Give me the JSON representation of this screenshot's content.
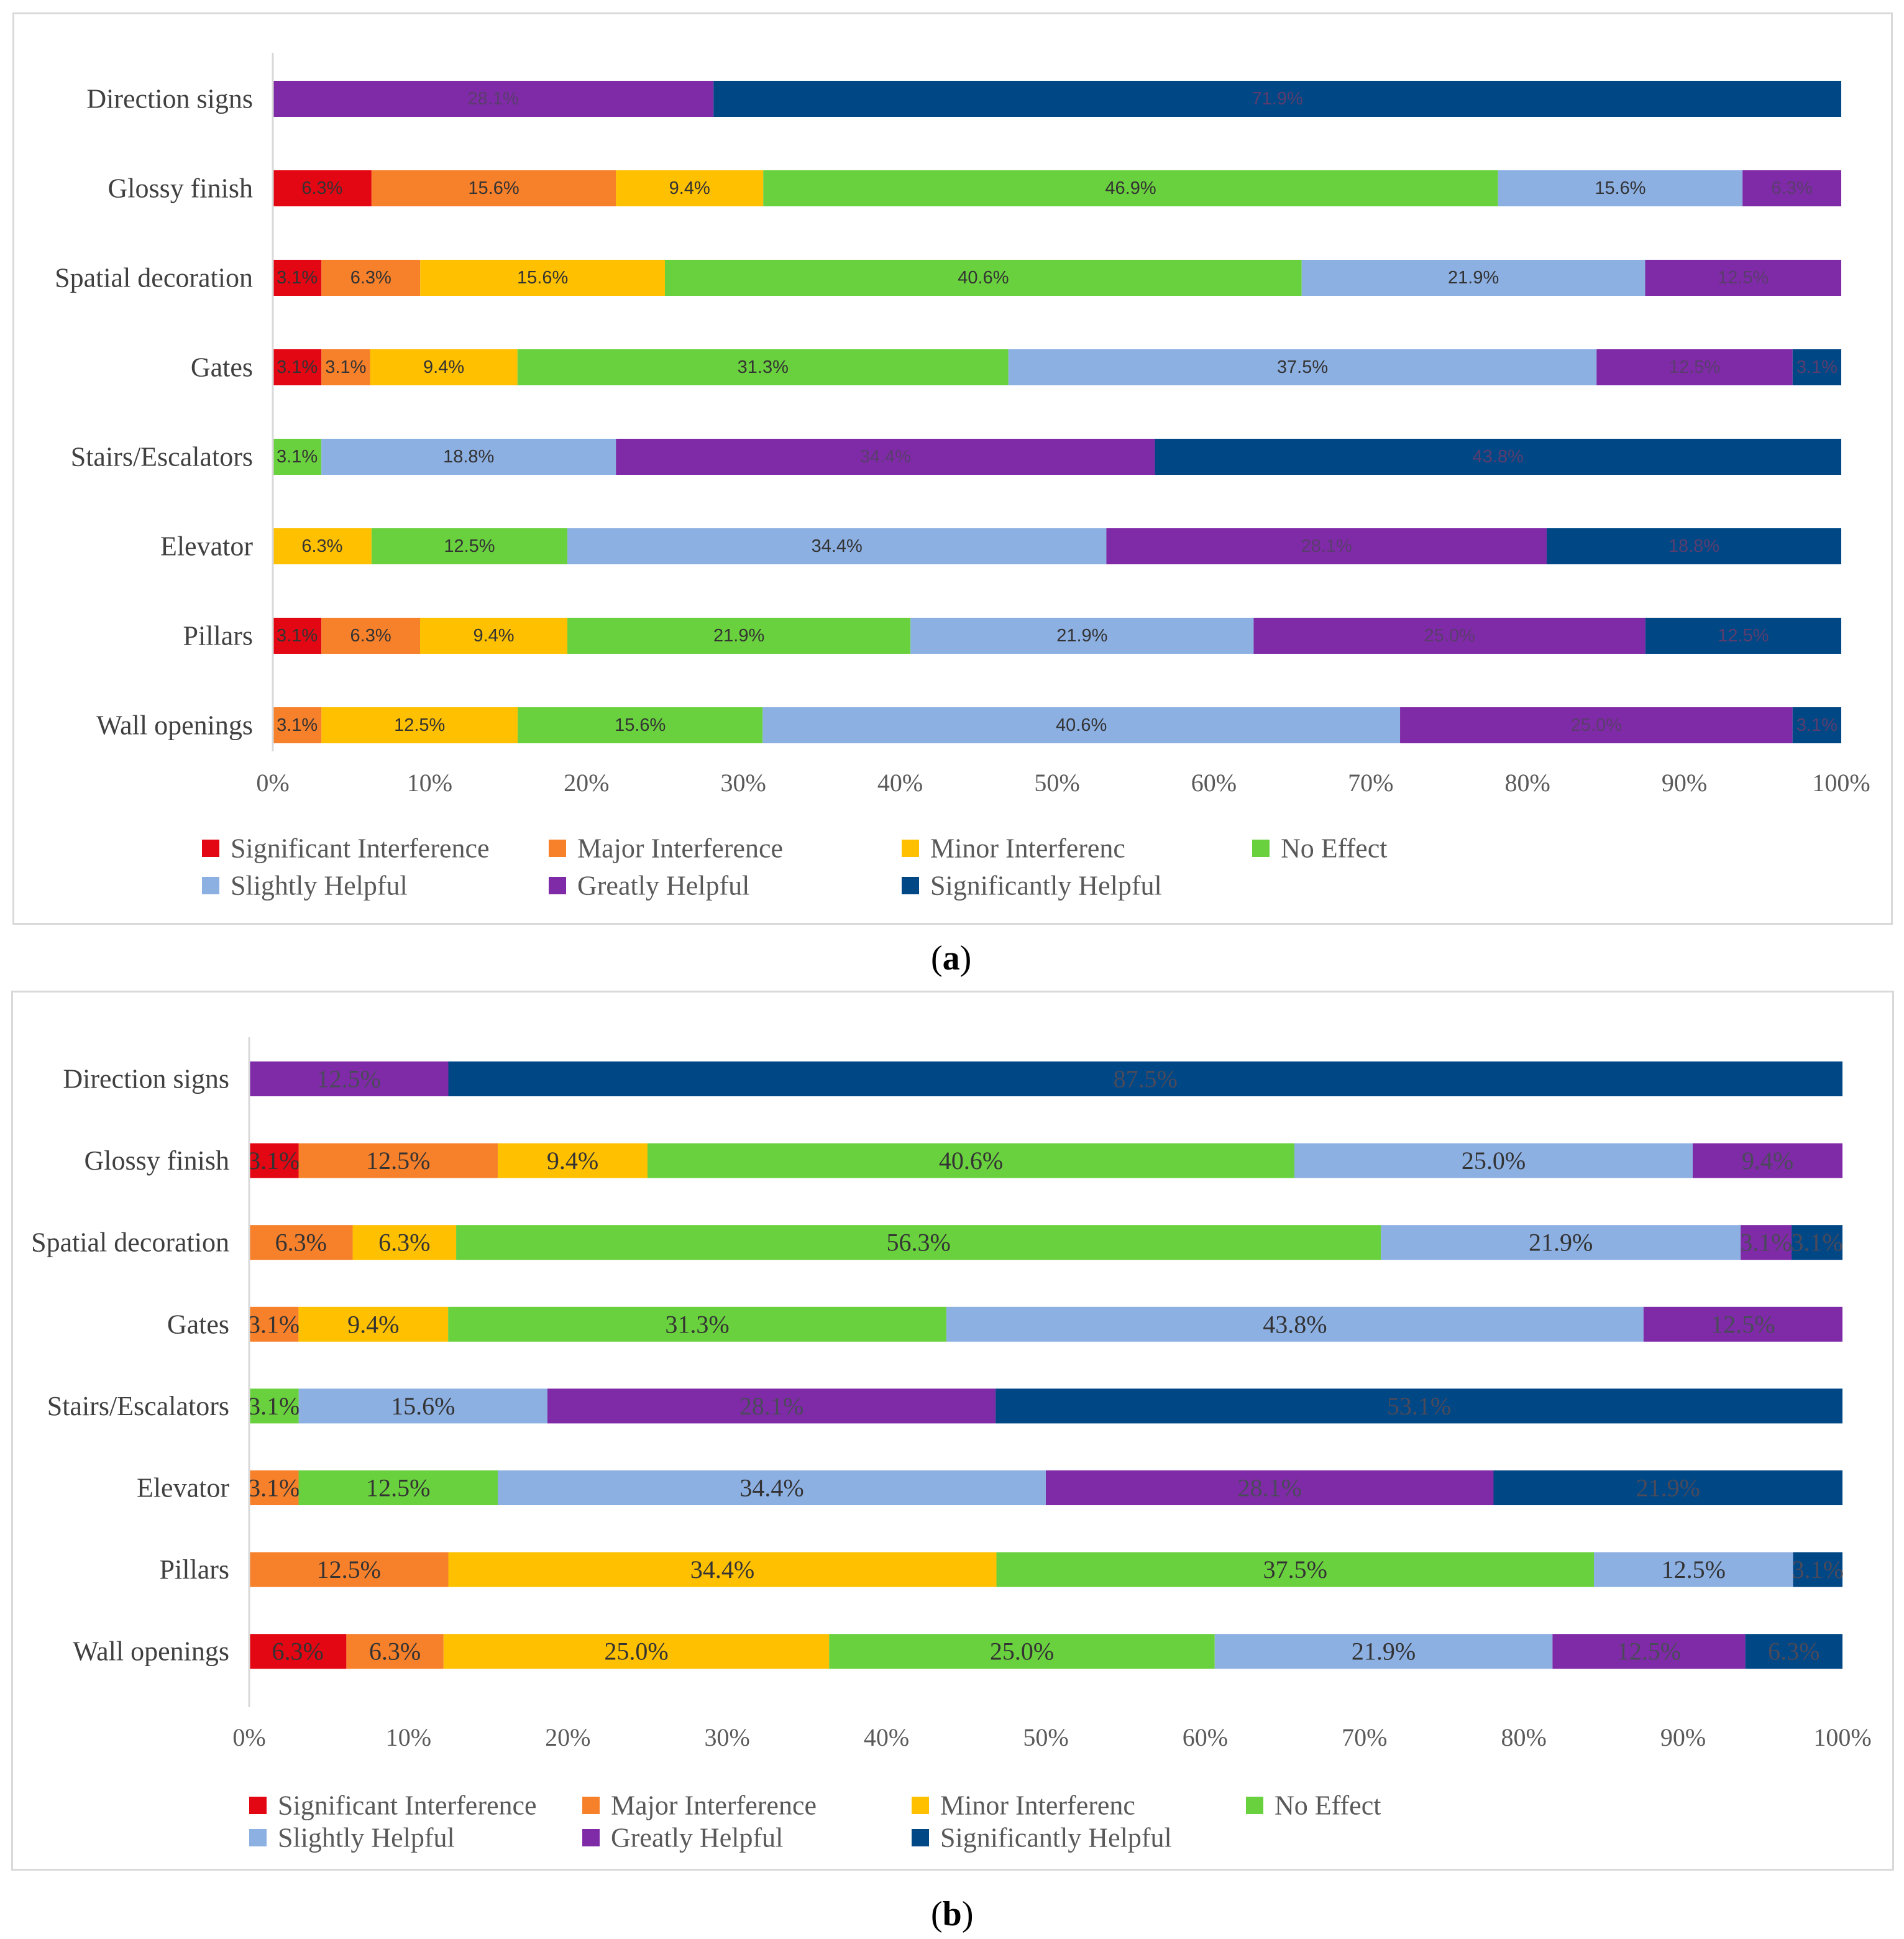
{
  "chart_data": [
    {
      "panel": "a",
      "type": "bar",
      "orientation": "horizontal",
      "stacked": true,
      "caption": "a",
      "categories": [
        "Direction signs",
        "Glossy finish",
        "Spatial decoration",
        "Gates",
        "Stairs/Escalators",
        "Elevator",
        "Pillars",
        "Wall openings"
      ],
      "series": [
        {
          "name": "Significant Interference",
          "color": "#e30613",
          "values": [
            0,
            6.3,
            3.1,
            3.1,
            0,
            0,
            3.1,
            0
          ]
        },
        {
          "name": "Major Interference",
          "color": "#f7802b",
          "values": [
            0,
            15.6,
            6.3,
            3.1,
            0,
            0,
            6.3,
            3.1
          ]
        },
        {
          "name": "Minor Interferenc",
          "color": "#ffc000",
          "values": [
            0,
            9.4,
            15.6,
            9.4,
            0,
            6.3,
            9.4,
            12.5
          ]
        },
        {
          "name": "No Effect",
          "color": "#6ad13e",
          "values": [
            0,
            46.9,
            40.6,
            31.3,
            3.1,
            12.5,
            21.9,
            15.6
          ]
        },
        {
          "name": "Slightly Helpful",
          "color": "#8db0e3",
          "values": [
            0,
            15.6,
            21.9,
            37.5,
            18.8,
            34.4,
            21.9,
            40.6
          ]
        },
        {
          "name": "Greatly Helpful",
          "color": "#7f2aa6",
          "values": [
            28.1,
            6.3,
            12.5,
            12.5,
            34.4,
            28.1,
            25.0,
            25.0
          ]
        },
        {
          "name": "Significantly Helpful",
          "color": "#004785",
          "values": [
            71.9,
            0,
            0,
            3.1,
            43.8,
            18.8,
            12.5,
            3.1
          ]
        }
      ],
      "xlim": [
        0,
        100
      ],
      "x_ticks": [
        "0%",
        "10%",
        "20%",
        "30%",
        "40%",
        "50%",
        "60%",
        "70%",
        "80%",
        "90%",
        "100%"
      ],
      "legend_position": "bottom"
    },
    {
      "panel": "b",
      "type": "bar",
      "orientation": "horizontal",
      "stacked": true,
      "caption": "b",
      "categories": [
        "Direction signs",
        "Glossy finish",
        "Spatial decoration",
        "Gates",
        "Stairs/Escalators",
        "Elevator",
        "Pillars",
        "Wall openings"
      ],
      "series": [
        {
          "name": "Significant Interference",
          "color": "#e30613",
          "values": [
            0,
            3.1,
            0,
            0,
            0,
            0,
            0,
            6.3
          ]
        },
        {
          "name": "Major Interference",
          "color": "#f7802b",
          "values": [
            0,
            12.5,
            6.3,
            3.1,
            0,
            3.1,
            12.5,
            6.3
          ]
        },
        {
          "name": "Minor Interferenc",
          "color": "#ffc000",
          "values": [
            0,
            9.4,
            6.3,
            9.4,
            0,
            0,
            34.4,
            25.0
          ]
        },
        {
          "name": "No Effect",
          "color": "#6ad13e",
          "values": [
            0,
            40.6,
            56.3,
            31.3,
            3.1,
            12.5,
            37.5,
            25.0
          ]
        },
        {
          "name": "Slightly Helpful",
          "color": "#8db0e3",
          "values": [
            0,
            25.0,
            21.9,
            43.8,
            15.6,
            34.4,
            12.5,
            21.9
          ]
        },
        {
          "name": "Greatly Helpful",
          "color": "#7f2aa6",
          "values": [
            12.5,
            9.4,
            3.1,
            12.5,
            28.1,
            28.1,
            0,
            12.5
          ]
        },
        {
          "name": "Significantly Helpful",
          "color": "#004785",
          "values": [
            87.5,
            0,
            3.1,
            0,
            53.1,
            21.9,
            3.1,
            6.3
          ]
        }
      ],
      "xlim": [
        0,
        100
      ],
      "x_ticks": [
        "0%",
        "10%",
        "20%",
        "30%",
        "40%",
        "50%",
        "60%",
        "70%",
        "80%",
        "90%",
        "100%"
      ],
      "legend_position": "bottom"
    }
  ],
  "captions": {
    "a": "a",
    "b": "b"
  }
}
